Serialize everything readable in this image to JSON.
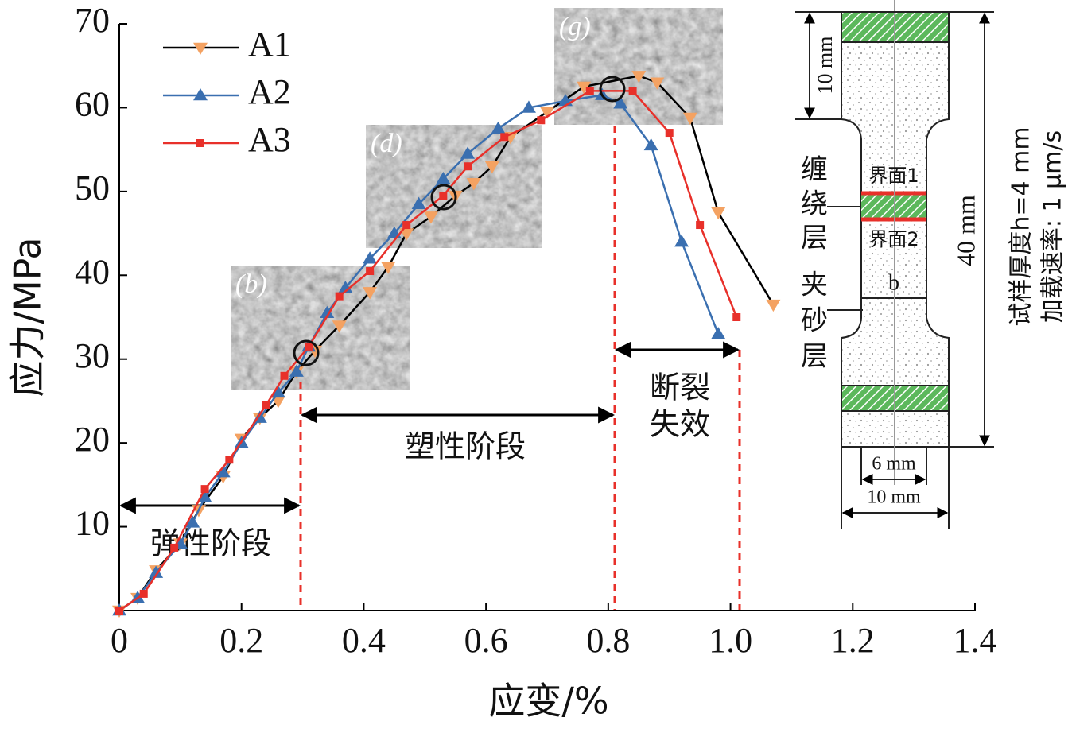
{
  "chart_data": {
    "type": "line",
    "xlabel": "应变/%",
    "ylabel": "应力/MPa",
    "xlim": [
      0,
      1.4
    ],
    "ylim": [
      0,
      70
    ],
    "xticks": [
      0,
      0.2,
      0.4,
      0.6,
      0.8,
      {
        "value": 1,
        "label": "1.0"
      },
      1.2,
      1.4
    ],
    "yticks": [
      10,
      20,
      30,
      40,
      50,
      60,
      70
    ],
    "legend": "upper left",
    "series": [
      {
        "name": "A1",
        "color": "#f4a262",
        "line_color": "#000000",
        "marker": "triangle-down",
        "x": [
          0,
          0.03,
          0.06,
          0.1,
          0.13,
          0.17,
          0.2,
          0.23,
          0.26,
          0.29,
          0.32,
          0.36,
          0.41,
          0.44,
          0.47,
          0.51,
          0.55,
          0.58,
          0.61,
          0.64,
          0.7,
          0.76,
          0.85,
          0.88,
          0.934,
          0.98,
          1.07
        ],
        "values": [
          0,
          1.5,
          4.8,
          8,
          12,
          16,
          20.5,
          23,
          25,
          28.5,
          31,
          34,
          38,
          41,
          45,
          47,
          49.5,
          51,
          53,
          56.5,
          59.5,
          62.5,
          63.8,
          63,
          58.8,
          47.5,
          36.5
        ]
      },
      {
        "name": "A2",
        "color": "#3a6fb0",
        "line_color": "#3a6fb0",
        "marker": "triangle-up",
        "x": [
          0,
          0.03,
          0.06,
          0.1,
          0.12,
          0.14,
          0.17,
          0.2,
          0.23,
          0.26,
          0.29,
          0.31,
          0.34,
          0.37,
          0.41,
          0.45,
          0.49,
          0.53,
          0.57,
          0.62,
          0.67,
          0.73,
          0.79,
          0.82,
          0.87,
          0.92,
          0.98
        ],
        "values": [
          0,
          1.5,
          4.5,
          8,
          10.5,
          13.5,
          16.5,
          20,
          23,
          26,
          28.5,
          31.5,
          35.5,
          38.5,
          42,
          45,
          48.5,
          51.5,
          54.5,
          57.5,
          60,
          60.8,
          61.5,
          60.5,
          55.5,
          44,
          33
        ]
      },
      {
        "name": "A3",
        "color": "#e8302a",
        "line_color": "#e8302a",
        "marker": "square",
        "x": [
          0,
          0.04,
          0.09,
          0.14,
          0.18,
          0.24,
          0.27,
          0.31,
          0.36,
          0.41,
          0.47,
          0.53,
          0.57,
          0.63,
          0.69,
          0.77,
          0.84,
          0.9,
          0.95,
          1.01
        ],
        "values": [
          0,
          2,
          7.5,
          14.5,
          18,
          24.5,
          28,
          31.5,
          37.5,
          40.5,
          46,
          49.5,
          53,
          56.5,
          58.5,
          62,
          62,
          57,
          46,
          35
        ]
      }
    ],
    "annotations": {
      "elastic": "弹性阶段",
      "plastic": "塑性阶段",
      "fracture1": "断裂",
      "fracture2": "失效",
      "inset_b": "(b)",
      "inset_d": "(d)",
      "inset_g": "(g)"
    }
  },
  "diagram": {
    "dim_grip": "10 mm",
    "winding1": "缠",
    "winding2": "绕",
    "winding3": "层",
    "interface1": "界面1",
    "interface2": "界面2",
    "point": "b",
    "sand1": "夹",
    "sand2": "砂",
    "sand3": "层",
    "dim_length": "40 mm",
    "dim_neck": "6 mm",
    "dim_width": "10 mm",
    "thickness": "试样厚度h=4 mm",
    "rate": "加载速率: 1 μm/s"
  }
}
